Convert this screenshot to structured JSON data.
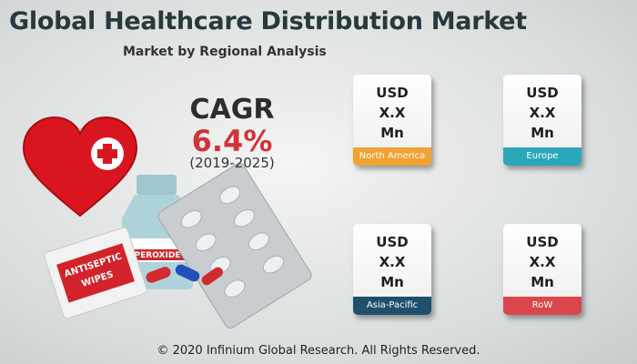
{
  "header": {
    "title": "Global Healthcare Distribution Market",
    "subtitle": "Market by Regional Analysis"
  },
  "cagr": {
    "label": "CAGR",
    "value": "6.4%",
    "period": "(2019-2025)"
  },
  "illustration": {
    "bottle_label": "PEROXIDE",
    "wipes_label": [
      "ANTISEPTIC",
      "WIPES"
    ]
  },
  "regions": [
    {
      "value_lines": [
        "USD",
        "X.X",
        "Mn"
      ],
      "name": "North America",
      "color": "#f0a232"
    },
    {
      "value_lines": [
        "USD",
        "X.X",
        "Mn"
      ],
      "name": "Europe",
      "color": "#2aa7b9"
    },
    {
      "value_lines": [
        "USD",
        "X.X",
        "Mn"
      ],
      "name": "Asia-Pacific",
      "color": "#1f4f6d"
    },
    {
      "value_lines": [
        "USD",
        "X.X",
        "Mn"
      ],
      "name": "RoW",
      "color": "#d9474a"
    }
  ],
  "footer": "© 2020 Infinium Global Research. All Rights Reserved."
}
